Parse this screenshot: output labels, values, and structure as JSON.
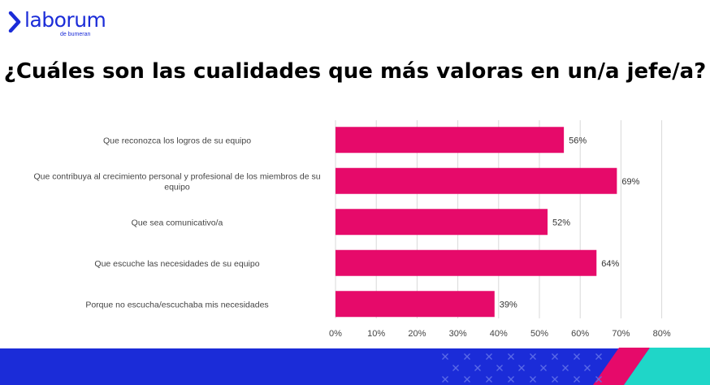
{
  "brand": {
    "name": "laborum",
    "subtitle": "de bumeran",
    "colors": {
      "blue": "#1b2cd8",
      "pink": "#e60a6a",
      "teal": "#1fd6c8"
    }
  },
  "slide": {
    "title": "¿Cuáles son las cualidades que más valoras en un/a jefe/a?"
  },
  "chart_data": {
    "type": "bar",
    "orientation": "horizontal",
    "categories": [
      "Que reconozca los logros de su equipo",
      "Que contribuya al crecimiento personal y profesional de los miembros de su equipo",
      "Que sea comunicativo/a",
      "Que escuche las necesidades de su equipo",
      "Porque no escucha/escuchaba mis necesidades"
    ],
    "category_lines": [
      [
        "Que reconozca los logros de su equipo"
      ],
      [
        "Que contribuya al crecimiento personal y profesional de los miembros de su",
        "equipo"
      ],
      [
        "Que sea comunicativo/a"
      ],
      [
        "Que escuche las necesidades de su equipo"
      ],
      [
        "Porque no escucha/escuchaba mis necesidades"
      ]
    ],
    "values": [
      56,
      69,
      52,
      64,
      39
    ],
    "data_labels": [
      "56%",
      "69%",
      "52%",
      "64%",
      "39%"
    ],
    "x_ticks": [
      "0%",
      "10%",
      "20%",
      "30%",
      "40%",
      "50%",
      "60%",
      "70%",
      "80%"
    ],
    "xlim": [
      0,
      80
    ],
    "grid": true,
    "bar_color": "#e60a6a",
    "legend": "none"
  }
}
